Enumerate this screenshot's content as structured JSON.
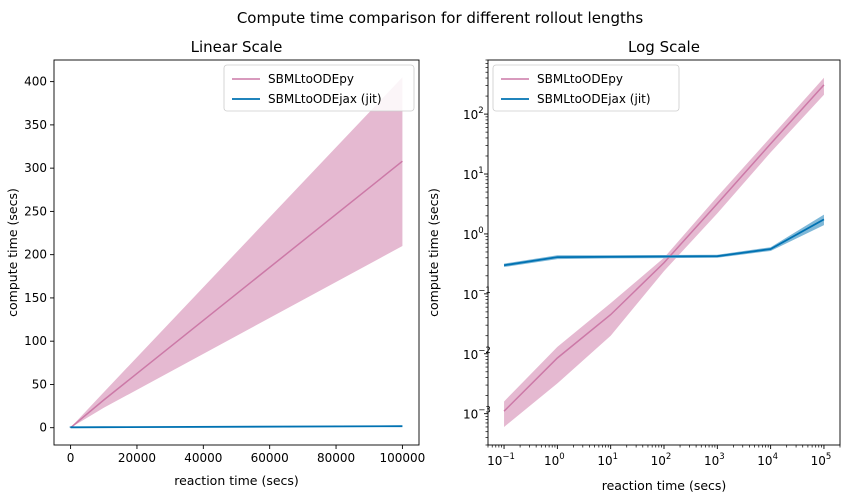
{
  "figure": {
    "suptitle": "Compute time comparison for different rollout lengths"
  },
  "chart_data": [
    {
      "type": "line",
      "title": "Linear Scale",
      "xlabel": "reaction time (secs)",
      "ylabel": "compute time (secs)",
      "xscale": "linear",
      "yscale": "linear",
      "xlim": [
        -5000,
        105000
      ],
      "ylim": [
        -20,
        425
      ],
      "xticks": [
        0,
        20000,
        40000,
        60000,
        80000,
        100000
      ],
      "xtick_labels": [
        "0",
        "20000",
        "40000",
        "60000",
        "80000",
        "100000"
      ],
      "yticks": [
        0,
        50,
        100,
        150,
        200,
        250,
        300,
        350,
        400
      ],
      "ytick_labels": [
        "0",
        "50",
        "100",
        "150",
        "200",
        "250",
        "300",
        "350",
        "400"
      ],
      "grid": false,
      "legend_position": "top-right",
      "series": [
        {
          "name": "SBMLtoODEpy",
          "color": "#cc79a7",
          "band_color": "#e5b9d1",
          "x": [
            0.1,
            1,
            10,
            100,
            1000,
            10000,
            100000
          ],
          "y": [
            0.0011,
            0.0085,
            0.045,
            0.33,
            3.2,
            32,
            308
          ],
          "lower": [
            0.0006,
            0.0032,
            0.02,
            0.24,
            2.2,
            23,
            210
          ],
          "upper": [
            0.0016,
            0.013,
            0.07,
            0.4,
            4.2,
            41,
            405
          ]
        },
        {
          "name": "SBMLtoODEjax (jit)",
          "color": "#0072b2",
          "band_color": "#7fb8d8",
          "x": [
            0.1,
            1,
            10,
            100,
            1000,
            10000,
            100000
          ],
          "y": [
            0.3,
            0.41,
            0.415,
            0.42,
            0.425,
            0.56,
            1.75
          ],
          "lower": [
            0.28,
            0.38,
            0.39,
            0.395,
            0.4,
            0.52,
            1.4
          ],
          "upper": [
            0.32,
            0.44,
            0.44,
            0.445,
            0.45,
            0.6,
            2.1
          ]
        }
      ]
    },
    {
      "type": "line",
      "title": "Log Scale",
      "xlabel": "reaction time (secs)",
      "ylabel": "compute time (secs)",
      "xscale": "log",
      "yscale": "log",
      "xlim": [
        0.05,
        200000
      ],
      "ylim": [
        0.0003,
        800
      ],
      "xticks": [
        0.1,
        1,
        10,
        100,
        1000,
        10000,
        100000
      ],
      "xtick_mantissa": [
        "10",
        "10",
        "10",
        "10",
        "10",
        "10",
        "10"
      ],
      "xtick_exponents": [
        "−1",
        "0",
        "1",
        "2",
        "3",
        "4",
        "5"
      ],
      "yticks": [
        0.001,
        0.01,
        0.1,
        1,
        10,
        100
      ],
      "ytick_mantissa": [
        "10",
        "10",
        "10",
        "10",
        "10",
        "10"
      ],
      "ytick_exponents": [
        "−3",
        "−2",
        "−1",
        "0",
        "1",
        "2"
      ],
      "grid": false,
      "legend_position": "top-left",
      "series": [
        {
          "name": "SBMLtoODEpy",
          "color": "#cc79a7",
          "band_color": "#e5b9d1",
          "x": [
            0.1,
            1,
            10,
            100,
            1000,
            10000,
            100000
          ],
          "y": [
            0.0011,
            0.0085,
            0.045,
            0.33,
            3.2,
            32,
            308
          ],
          "lower": [
            0.0006,
            0.0032,
            0.02,
            0.24,
            2.2,
            23,
            210
          ],
          "upper": [
            0.0016,
            0.013,
            0.07,
            0.4,
            4.2,
            41,
            405
          ]
        },
        {
          "name": "SBMLtoODEjax (jit)",
          "color": "#0072b2",
          "band_color": "#7fb8d8",
          "x": [
            0.1,
            1,
            10,
            100,
            1000,
            10000,
            100000
          ],
          "y": [
            0.3,
            0.41,
            0.415,
            0.42,
            0.425,
            0.56,
            1.75
          ],
          "lower": [
            0.28,
            0.38,
            0.39,
            0.395,
            0.4,
            0.52,
            1.4
          ],
          "upper": [
            0.32,
            0.44,
            0.44,
            0.445,
            0.45,
            0.6,
            2.1
          ]
        }
      ]
    }
  ]
}
